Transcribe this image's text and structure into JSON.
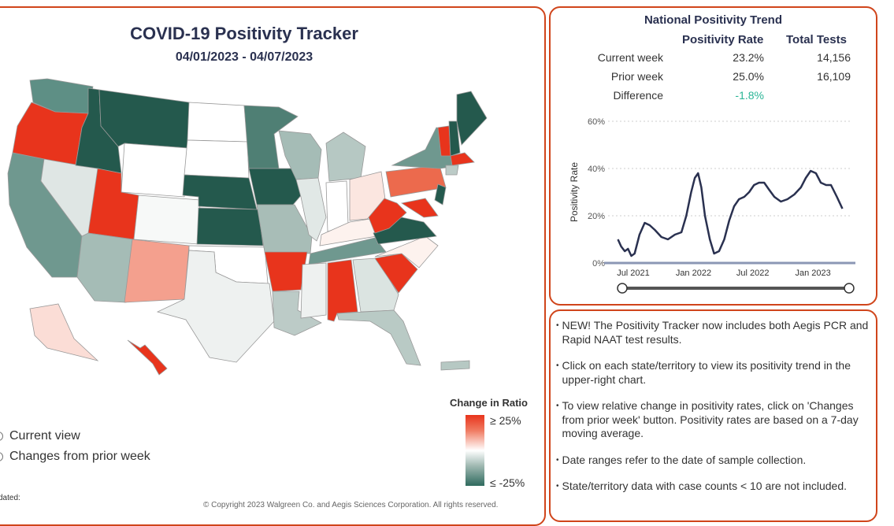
{
  "tracker": {
    "title": "COVID-19 Positivity Tracker",
    "dates": "04/01/2023 - 04/07/2023"
  },
  "legend": {
    "title": "Change in Ratio",
    "high": "≥ 25%",
    "low": "≤ -25%",
    "colors": {
      "high": "#e8341c",
      "mid": "#ffffff",
      "low": "#2f6a5e"
    }
  },
  "view_options": [
    {
      "label": "Current view"
    },
    {
      "label": "Changes from prior week"
    }
  ],
  "updated_label": "dated:",
  "copyright": "© Copyright 2023 Walgreen Co. and Aegis Sciences Corporation. All rights reserved.",
  "trend": {
    "title": "National Positivity Trend",
    "headers": {
      "rate": "Positivity Rate",
      "tests": "Total Tests"
    },
    "rows": [
      {
        "label": "Current week",
        "rate": "23.2%",
        "tests": "14,156"
      },
      {
        "label": "Prior week",
        "rate": "25.0%",
        "tests": "16,109"
      },
      {
        "label": "Difference",
        "rate": "-1.8%",
        "tests": ""
      }
    ]
  },
  "chart_data": {
    "type": "line",
    "title": "",
    "xlabel": "",
    "ylabel": "Positivity Rate",
    "ylim": [
      0,
      60
    ],
    "yticks": [
      "0%",
      "20%",
      "40%",
      "60%"
    ],
    "xticks": [
      "Jul 2021",
      "Jan 2022",
      "Jul 2022",
      "Jan 2023"
    ],
    "grid": true,
    "line_color": "#2a3150",
    "series": [
      {
        "x": [
          "2021-05-15",
          "2021-05-25",
          "2021-06-05",
          "2021-06-15",
          "2021-06-25",
          "2021-07-05",
          "2021-07-20",
          "2021-08-05",
          "2021-08-20",
          "2021-09-05",
          "2021-09-25",
          "2021-10-15",
          "2021-11-05",
          "2021-11-25",
          "2021-12-10",
          "2021-12-25",
          "2022-01-05",
          "2022-01-15",
          "2022-01-25",
          "2022-02-05",
          "2022-02-20",
          "2022-03-05",
          "2022-03-20",
          "2022-04-05",
          "2022-04-20",
          "2022-05-05",
          "2022-05-20",
          "2022-06-05",
          "2022-06-20",
          "2022-07-05",
          "2022-07-20",
          "2022-08-05",
          "2022-08-20",
          "2022-09-05",
          "2022-09-25",
          "2022-10-15",
          "2022-11-05",
          "2022-11-25",
          "2022-12-10",
          "2022-12-25",
          "2023-01-10",
          "2023-01-25",
          "2023-02-10",
          "2023-02-25",
          "2023-03-15",
          "2023-04-01"
        ],
        "y": [
          10,
          7,
          5,
          6,
          3,
          4,
          12,
          17,
          16,
          14,
          11,
          10,
          12,
          13,
          20,
          30,
          36,
          38,
          32,
          20,
          10,
          4,
          5,
          10,
          18,
          24,
          27,
          28,
          30,
          33,
          34,
          34,
          31,
          28,
          26,
          27,
          29,
          32,
          36,
          39,
          38,
          34,
          33,
          33,
          28,
          23
        ]
      }
    ]
  },
  "notes": [
    "NEW! The Positivity Tracker now includes both Aegis PCR and Rapid NAAT test results.",
    "Click on each state/territory to view its positivity trend in the upper-right chart.",
    "To view relative change in positivity rates, click on 'Changes from prior week' button. Positivity rates are based on a 7-day moving average.",
    "Date ranges refer to the date of sample collection.",
    "State/territory data with case counts < 10 are not included."
  ]
}
